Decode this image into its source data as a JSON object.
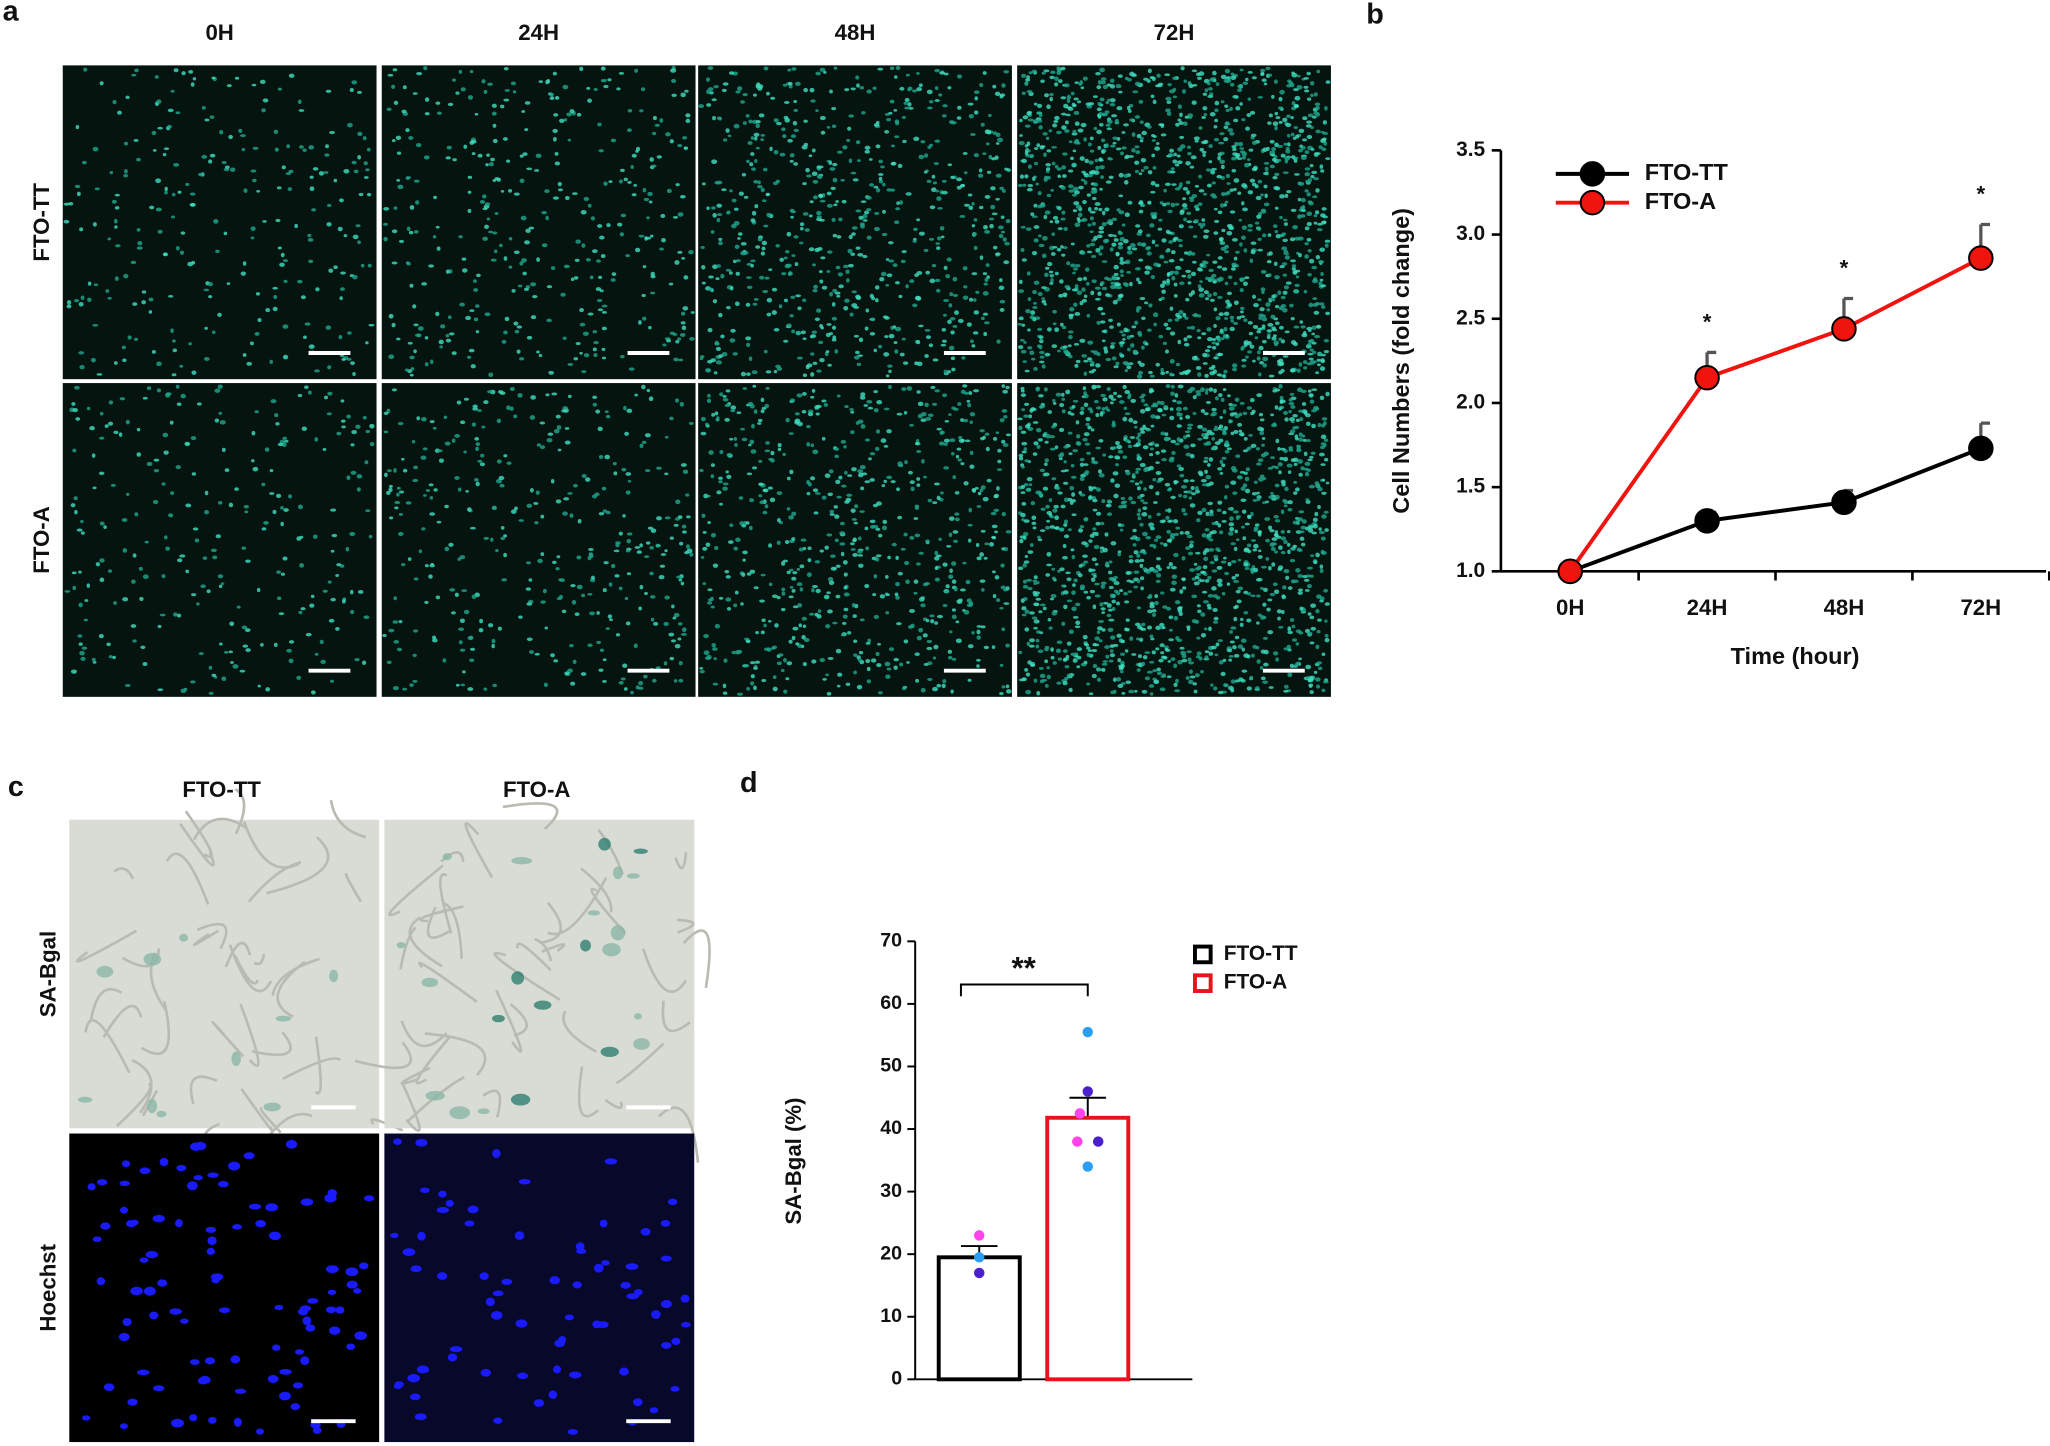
{
  "panels": {
    "a": {
      "label": "a",
      "columns": [
        "0H",
        "24H",
        "48H",
        "72H"
      ],
      "rows": [
        "FTO-TT",
        "FTO-A"
      ]
    },
    "c": {
      "label": "c",
      "columns": [
        "FTO-TT",
        "FTO-A"
      ],
      "rows": [
        "SA-Bgal",
        "Hoechst"
      ]
    }
  },
  "chart_data": [
    {
      "label": "b",
      "type": "line",
      "y_label": "Cell Numbers (fold change)",
      "x_label": "Time (hour)",
      "categories": [
        "0H",
        "24H",
        "48H",
        "72H"
      ],
      "series": [
        {
          "name": "FTO-TT",
          "color": "#000000",
          "values": [
            1,
            1.3,
            1.41,
            1.73
          ],
          "errors": [
            0,
            0.05,
            0.07,
            0.15
          ]
        },
        {
          "name": "FTO-A",
          "color": "#f0140f",
          "values": [
            1,
            2.15,
            2.44,
            2.86
          ],
          "errors": [
            0,
            0.15,
            0.18,
            0.2
          ]
        }
      ],
      "annotations": [
        {
          "text": "*",
          "x": "24H"
        },
        {
          "text": "*",
          "x": "48H"
        },
        {
          "text": "*",
          "x": "72H"
        }
      ],
      "ylim": [
        1,
        3.5
      ],
      "yticks": [
        {
          "value": 1,
          "label": "1.0"
        },
        1.5,
        {
          "value": 2,
          "label": "2.0"
        },
        2.5,
        {
          "value": 3,
          "label": "3.0"
        },
        3.5
      ],
      "legend": "upper left"
    },
    {
      "label": "d",
      "type": "bar",
      "y_label": "SA-Bgal (%)",
      "series": [
        {
          "name": "FTO-TT",
          "color": "#000000",
          "values": [
            19.5
          ],
          "errors": [
            1.8
          ],
          "points": [
            23,
            19.5,
            17
          ],
          "point_colors": [
            "#ff44ee",
            "#2a9df4",
            "#4b1fcc"
          ]
        },
        {
          "name": "FTO-A",
          "color": "#e8141b",
          "values": [
            41.8
          ],
          "errors": [
            3.2
          ],
          "points": [
            55.5,
            46,
            42.5,
            38,
            38,
            34
          ],
          "point_colors": [
            "#2a9df4",
            "#4b1fcc",
            "#ff44ee",
            "#ff44ee",
            "#4b1fcc",
            "#2a9df4"
          ]
        }
      ],
      "significance": "**",
      "ylim": [
        0,
        70
      ],
      "yticks": [
        0,
        10,
        20,
        30,
        40,
        50,
        60,
        70
      ],
      "legend": "upper right"
    }
  ]
}
